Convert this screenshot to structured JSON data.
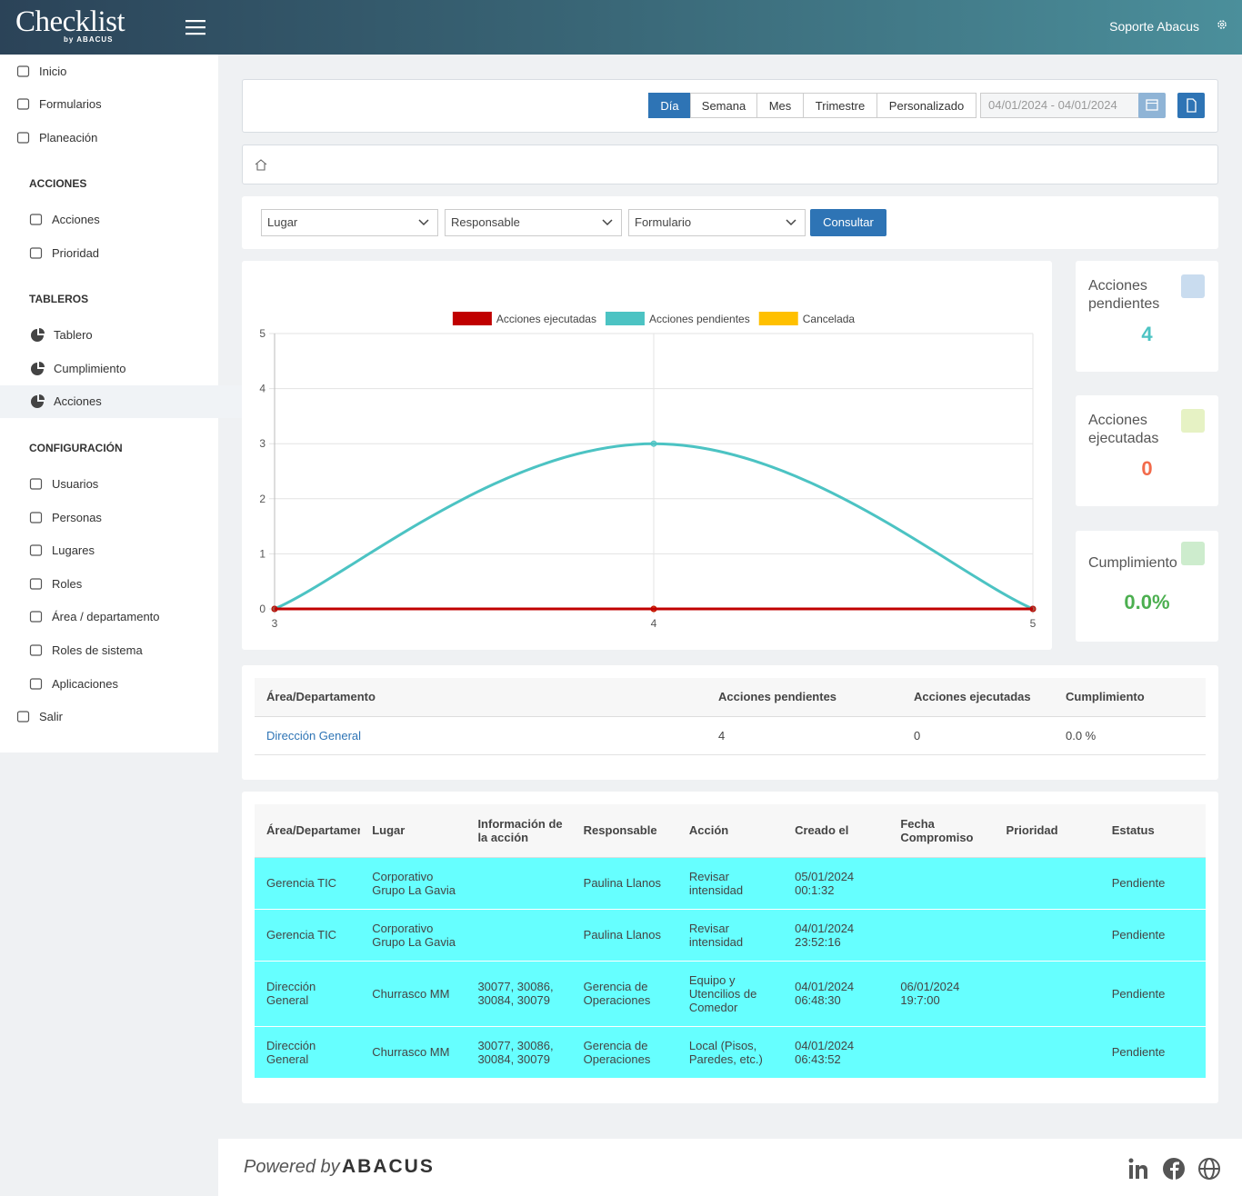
{
  "header": {
    "logo": "Checklist",
    "logo_sub": "by ABACUS",
    "user": "Soporte Abacus"
  },
  "sidebar": {
    "top": [
      "Inicio",
      "Formularios",
      "Planeación"
    ],
    "sections": [
      {
        "title": "ACCIONES",
        "items": [
          "Acciones",
          "Prioridad"
        ]
      },
      {
        "title": "TABLEROS",
        "items": [
          "Tablero",
          "Cumplimiento",
          "Acciones"
        ]
      },
      {
        "title": "CONFIGURACIÓN",
        "items": [
          "Usuarios",
          "Personas",
          "Lugares",
          "Roles",
          "Área / departamento",
          "Roles de sistema",
          "Aplicaciones"
        ]
      }
    ],
    "logout": "Salir"
  },
  "toolbar": {
    "periods": [
      "Día",
      "Semana",
      "Mes",
      "Trimestre",
      "Personalizado"
    ],
    "date_range": "04/01/2024 - 04/01/2024"
  },
  "filters": {
    "selects": [
      "Lugar",
      "Responsable",
      "Formulario"
    ],
    "button": "Consultar"
  },
  "chart_data": {
    "type": "line",
    "x": [
      3,
      4,
      5
    ],
    "series": [
      {
        "name": "Acciones ejecutadas",
        "color": "#c00000",
        "values": [
          0,
          0,
          0
        ]
      },
      {
        "name": "Acciones pendientes",
        "color": "#4cc3c3",
        "values": [
          0,
          3,
          0
        ]
      },
      {
        "name": "Cancelada",
        "color": "#ffc000",
        "values": [
          0,
          0,
          0
        ]
      }
    ],
    "xlim": [
      3,
      5
    ],
    "xticks": [
      3,
      4,
      5
    ],
    "ylim": [
      0,
      5
    ],
    "yticks": [
      0,
      1,
      2,
      3,
      4,
      5
    ],
    "grid": true,
    "legend": "top"
  },
  "kpis": [
    {
      "label": "Acciones pendientes",
      "value": "4",
      "color": "#4cc3c3"
    },
    {
      "label": "Acciones ejecutadas",
      "value": "0",
      "color": "#f26b4b"
    },
    {
      "label": "Cumplimiento",
      "value": "0.0%",
      "color": "#4caf50"
    }
  ],
  "summary_table": {
    "headers": [
      "Área/Departamento",
      "Acciones pendientes",
      "Acciones ejecutadas",
      "Cumplimiento"
    ],
    "rows": [
      [
        "Dirección General",
        "4",
        "0",
        "0.0 %"
      ]
    ]
  },
  "detail_table": {
    "headers": [
      "Área/Departamento",
      "Lugar",
      "Información de la acción",
      "Responsable",
      "Acción",
      "Creado el",
      "Fecha Compromiso",
      "Prioridad",
      "Estatus"
    ],
    "rows": [
      [
        "Gerencia TIC",
        "Corporativo Grupo La Gavia",
        null,
        "Paulina Llanos",
        "Revisar intensidad",
        "05/01/2024 00:1:32",
        null,
        null,
        "Pendiente"
      ],
      [
        "Gerencia TIC",
        "Corporativo Grupo La Gavia",
        null,
        "Paulina Llanos",
        "Revisar intensidad",
        "04/01/2024 23:52:16",
        null,
        null,
        "Pendiente"
      ],
      [
        "Dirección General",
        "Churrasco MM",
        "30077, 30086, 30084, 30079",
        "Gerencia de Operaciones",
        "Equipo y Utencilios de Comedor",
        "04/01/2024 06:48:30",
        "06/01/2024 19:7:00",
        null,
        "Pendiente"
      ],
      [
        "Dirección General",
        "Churrasco MM",
        "30077, 30086, 30084, 30079",
        "Gerencia de Operaciones",
        "Local (Pisos, Paredes, etc.)",
        "04/01/2024 06:43:52",
        null,
        null,
        "Pendiente"
      ]
    ]
  },
  "footer": {
    "powered": "Powered by",
    "brand": "ABACUS"
  }
}
